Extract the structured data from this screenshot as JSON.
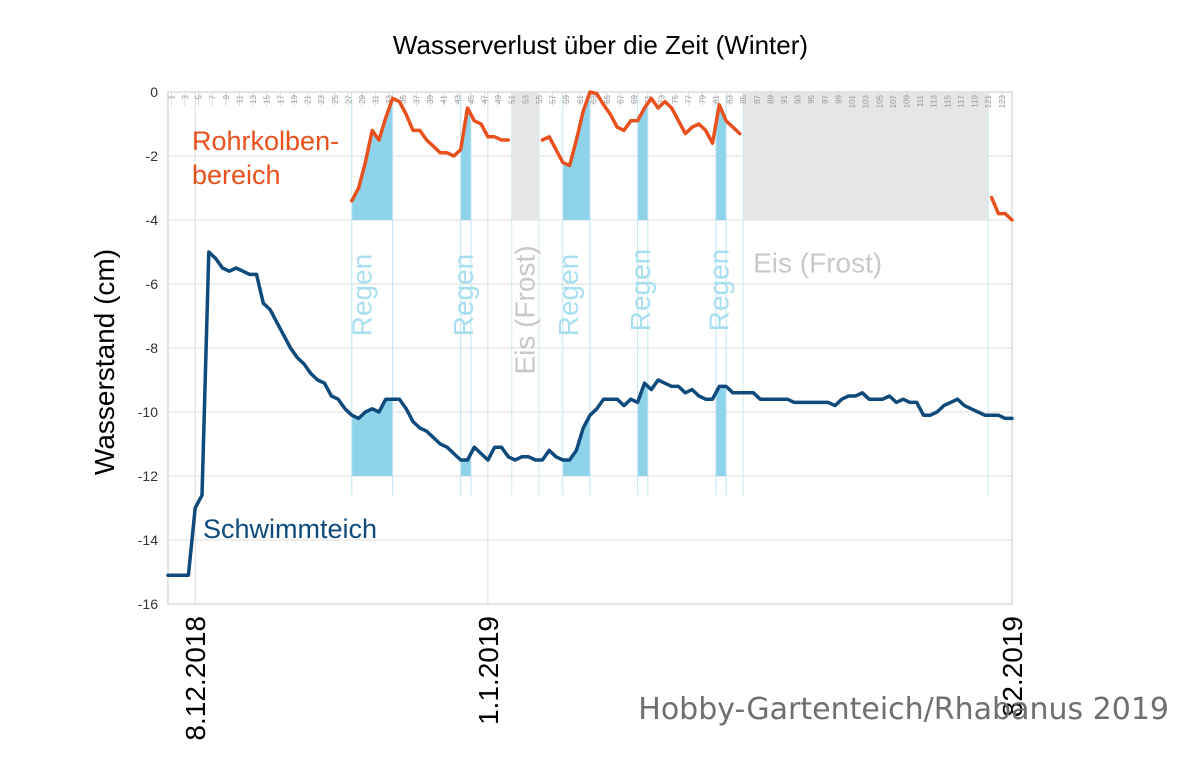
{
  "title": "Wasserverlust über die Zeit (Winter)",
  "credit": "Hobby-Gartenteich/Rhabanus 2019",
  "chart_data": {
    "type": "line",
    "ylabel": "Wasserstand (cm)",
    "ylim": [
      -16,
      0
    ],
    "yticks": [
      0,
      -2,
      -4,
      -6,
      -8,
      -10,
      -12,
      -14,
      -16
    ],
    "xlim": [
      0,
      124
    ],
    "grid": true,
    "date_labels": [
      {
        "x": 4,
        "label": "8.12.2018"
      },
      {
        "x": 47,
        "label": "1.1.2019"
      },
      {
        "x": 124,
        "label": "82.2019"
      }
    ],
    "top_day_ticks": [
      1,
      3,
      5,
      7,
      9,
      11,
      13,
      15,
      17,
      19,
      21,
      23,
      25,
      27,
      29,
      31,
      33,
      35,
      37,
      39,
      41,
      43,
      45,
      47,
      49,
      51,
      53,
      55,
      57,
      59,
      61,
      63,
      65,
      67,
      69,
      71,
      73,
      75,
      77,
      79,
      81,
      83,
      85,
      87,
      89,
      91,
      93,
      95,
      97,
      99,
      101,
      103,
      105,
      107,
      109,
      111,
      113,
      115,
      117,
      119,
      121,
      123
    ],
    "series": [
      {
        "name": "Rohrkolben-bereich",
        "color": "#e8501e",
        "segments": [
          [
            [
              27,
              -3.4
            ],
            [
              28,
              -3.0
            ],
            [
              29,
              -2.2
            ],
            [
              30,
              -1.2
            ],
            [
              31,
              -1.5
            ],
            [
              32,
              -0.8
            ],
            [
              33,
              -0.2
            ],
            [
              34,
              -0.3
            ],
            [
              35,
              -0.7
            ],
            [
              36,
              -1.2
            ],
            [
              37,
              -1.2
            ],
            [
              38,
              -1.5
            ],
            [
              39,
              -1.7
            ],
            [
              40,
              -1.9
            ],
            [
              41,
              -1.9
            ],
            [
              42,
              -2.0
            ],
            [
              43,
              -1.8
            ],
            [
              44,
              -0.5
            ],
            [
              45,
              -0.9
            ],
            [
              46,
              -1.0
            ],
            [
              47,
              -1.4
            ],
            [
              48,
              -1.4
            ],
            [
              49,
              -1.5
            ],
            [
              50,
              -1.5
            ]
          ],
          [
            [
              55,
              -1.5
            ],
            [
              56,
              -1.4
            ],
            [
              57,
              -1.8
            ],
            [
              58,
              -2.2
            ],
            [
              59,
              -2.3
            ],
            [
              60,
              -1.5
            ],
            [
              61,
              -0.6
            ],
            [
              62,
              0.0
            ],
            [
              63,
              -0.05
            ],
            [
              64,
              -0.4
            ],
            [
              65,
              -0.7
            ],
            [
              66,
              -1.1
            ],
            [
              67,
              -1.2
            ],
            [
              68,
              -0.9
            ],
            [
              69,
              -0.9
            ],
            [
              70,
              -0.5
            ],
            [
              71,
              -0.2
            ],
            [
              72,
              -0.5
            ],
            [
              73,
              -0.3
            ],
            [
              74,
              -0.5
            ],
            [
              75,
              -0.9
            ],
            [
              76,
              -1.3
            ],
            [
              77,
              -1.1
            ],
            [
              78,
              -1.0
            ],
            [
              79,
              -1.2
            ],
            [
              80,
              -1.6
            ],
            [
              81,
              -0.4
            ],
            [
              82,
              -0.9
            ],
            [
              83,
              -1.1
            ],
            [
              84,
              -1.3
            ]
          ],
          [
            [
              121,
              -3.3
            ],
            [
              122,
              -3.8
            ],
            [
              123,
              -3.8
            ],
            [
              124,
              -4.0
            ]
          ]
        ]
      },
      {
        "name": "Schwimmteich",
        "color": "#0e4a7c",
        "segments": [
          [
            [
              0,
              -15.1
            ],
            [
              1,
              -15.1
            ],
            [
              2,
              -15.1
            ],
            [
              3,
              -15.1
            ],
            [
              4,
              -13.0
            ],
            [
              5,
              -12.6
            ],
            [
              6,
              -5.0
            ],
            [
              7,
              -5.2
            ],
            [
              8,
              -5.5
            ],
            [
              9,
              -5.6
            ],
            [
              10,
              -5.5
            ],
            [
              11,
              -5.6
            ],
            [
              12,
              -5.7
            ],
            [
              13,
              -5.7
            ],
            [
              14,
              -6.6
            ],
            [
              15,
              -6.8
            ],
            [
              16,
              -7.2
            ],
            [
              17,
              -7.6
            ],
            [
              18,
              -8.0
            ],
            [
              19,
              -8.3
            ],
            [
              20,
              -8.5
            ],
            [
              21,
              -8.8
            ],
            [
              22,
              -9.0
            ],
            [
              23,
              -9.1
            ],
            [
              24,
              -9.5
            ],
            [
              25,
              -9.6
            ],
            [
              26,
              -9.9
            ],
            [
              27,
              -10.1
            ],
            [
              28,
              -10.2
            ],
            [
              29,
              -10.0
            ],
            [
              30,
              -9.9
            ],
            [
              31,
              -10.0
            ],
            [
              32,
              -9.6
            ],
            [
              33,
              -9.6
            ],
            [
              34,
              -9.6
            ],
            [
              35,
              -9.9
            ],
            [
              36,
              -10.3
            ],
            [
              37,
              -10.5
            ],
            [
              38,
              -10.6
            ],
            [
              39,
              -10.8
            ],
            [
              40,
              -11.0
            ],
            [
              41,
              -11.1
            ],
            [
              42,
              -11.3
            ],
            [
              43,
              -11.5
            ],
            [
              44,
              -11.5
            ],
            [
              45,
              -11.1
            ],
            [
              46,
              -11.3
            ],
            [
              47,
              -11.5
            ],
            [
              48,
              -11.1
            ],
            [
              49,
              -11.1
            ],
            [
              50,
              -11.4
            ],
            [
              51,
              -11.5
            ],
            [
              52,
              -11.4
            ],
            [
              53,
              -11.4
            ],
            [
              54,
              -11.5
            ],
            [
              55,
              -11.5
            ],
            [
              56,
              -11.2
            ],
            [
              57,
              -11.4
            ],
            [
              58,
              -11.5
            ],
            [
              59,
              -11.5
            ],
            [
              60,
              -11.2
            ],
            [
              61,
              -10.5
            ],
            [
              62,
              -10.1
            ],
            [
              63,
              -9.9
            ],
            [
              64,
              -9.6
            ],
            [
              65,
              -9.6
            ],
            [
              66,
              -9.6
            ],
            [
              67,
              -9.8
            ],
            [
              68,
              -9.6
            ],
            [
              69,
              -9.7
            ],
            [
              70,
              -9.1
            ],
            [
              71,
              -9.3
            ],
            [
              72,
              -9.0
            ],
            [
              73,
              -9.1
            ],
            [
              74,
              -9.2
            ],
            [
              75,
              -9.2
            ],
            [
              76,
              -9.4
            ],
            [
              77,
              -9.3
            ],
            [
              78,
              -9.5
            ],
            [
              79,
              -9.6
            ],
            [
              80,
              -9.6
            ],
            [
              81,
              -9.2
            ],
            [
              82,
              -9.2
            ],
            [
              83,
              -9.4
            ],
            [
              84,
              -9.4
            ],
            [
              85,
              -9.4
            ],
            [
              86,
              -9.4
            ],
            [
              87,
              -9.6
            ],
            [
              88,
              -9.6
            ],
            [
              89,
              -9.6
            ],
            [
              90,
              -9.6
            ],
            [
              91,
              -9.6
            ],
            [
              92,
              -9.7
            ],
            [
              93,
              -9.7
            ],
            [
              94,
              -9.7
            ],
            [
              95,
              -9.7
            ],
            [
              96,
              -9.7
            ],
            [
              97,
              -9.7
            ],
            [
              98,
              -9.8
            ],
            [
              99,
              -9.6
            ],
            [
              100,
              -9.5
            ],
            [
              101,
              -9.5
            ],
            [
              102,
              -9.4
            ],
            [
              103,
              -9.6
            ],
            [
              104,
              -9.6
            ],
            [
              105,
              -9.6
            ],
            [
              106,
              -9.5
            ],
            [
              107,
              -9.7
            ],
            [
              108,
              -9.6
            ],
            [
              109,
              -9.7
            ],
            [
              110,
              -9.7
            ],
            [
              111,
              -10.1
            ],
            [
              112,
              -10.1
            ],
            [
              113,
              -10.0
            ],
            [
              114,
              -9.8
            ],
            [
              115,
              -9.7
            ],
            [
              116,
              -9.6
            ],
            [
              117,
              -9.8
            ],
            [
              118,
              -9.9
            ],
            [
              119,
              -10.0
            ],
            [
              120,
              -10.1
            ],
            [
              121,
              -10.1
            ],
            [
              122,
              -10.1
            ],
            [
              123,
              -10.2
            ],
            [
              124,
              -10.2
            ]
          ]
        ]
      }
    ],
    "bands": [
      {
        "kind": "rain",
        "x0": 27,
        "x1": 33,
        "label": "Regen"
      },
      {
        "kind": "rain",
        "x0": 43,
        "x1": 44.5,
        "label": "Regen"
      },
      {
        "kind": "frost",
        "x0": 50.5,
        "x1": 54.5,
        "label": "Eis (Frost)"
      },
      {
        "kind": "rain",
        "x0": 58,
        "x1": 62,
        "label": "Regen"
      },
      {
        "kind": "rain",
        "x0": 69,
        "x1": 70.5,
        "label": "Regen"
      },
      {
        "kind": "rain",
        "x0": 80.5,
        "x1": 82,
        "label": "Regen"
      },
      {
        "kind": "frost",
        "x0": 84.5,
        "x1": 120.5,
        "label": "Eis (Frost)"
      }
    ],
    "colors": {
      "rain": "#8fd3ea",
      "rain_text": "#a8dff0",
      "frost": "#e6e6e6",
      "frost_text": "#c8c8c8",
      "grid": "#dcdcdc"
    }
  }
}
